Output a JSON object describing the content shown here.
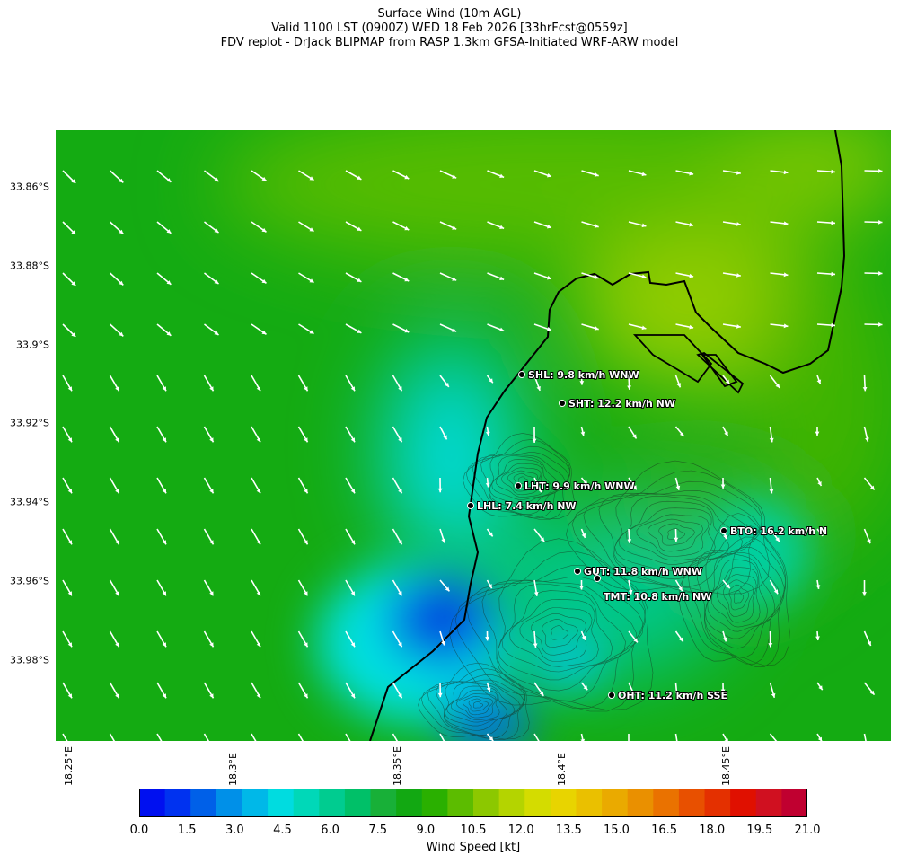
{
  "titles": {
    "line1": "Surface Wind (10m AGL)",
    "line2": "Valid 1100 LST (0900Z) WED 18 Feb 2026 [33hrFcst@0559z]",
    "line3": "FDV replot - DrJack BLIPMAP from RASP 1.3km GFSA-Initiated WRF-ARW model"
  },
  "lat_labels": [
    "33.86°S",
    "33.88°S",
    "33.9°S",
    "33.92°S",
    "33.94°S",
    "33.96°S",
    "33.98°S"
  ],
  "lon_labels": [
    "18.25°E",
    "18.3°E",
    "18.35°E",
    "18.4°E",
    "18.45°E"
  ],
  "stations": [
    {
      "code": "SHL",
      "label": "SHL: 9.8 km/h WNW"
    },
    {
      "code": "SHT",
      "label": "SHT: 12.2 km/h NW"
    },
    {
      "code": "LHT",
      "label": "LHT: 9.9 km/h WNW"
    },
    {
      "code": "LHL",
      "label": "LHL: 7.4 km/h NW"
    },
    {
      "code": "BTO",
      "label": "BTO: 16.2 km/h N"
    },
    {
      "code": "GUT",
      "label": "GUT: 11.8 km/h WNW"
    },
    {
      "code": "TMT",
      "label": "TMT: 10.8 km/h NW"
    },
    {
      "code": "OHT",
      "label": "OHT: 11.2 km/h SSE"
    }
  ],
  "colorbar": {
    "title": "Wind Speed [kt]",
    "ticks": [
      "0.0",
      "1.5",
      "3.0",
      "4.5",
      "6.0",
      "7.5",
      "9.0",
      "10.5",
      "12.0",
      "13.5",
      "15.0",
      "16.5",
      "18.0",
      "19.5",
      "21.0"
    ],
    "colors": [
      "#0010f0",
      "#0032f0",
      "#0060e8",
      "#0090e8",
      "#00b8e8",
      "#00dce0",
      "#00d8b8",
      "#00cc90",
      "#00c068",
      "#18b038",
      "#12a812",
      "#2ab000",
      "#5cbc00",
      "#8cc800",
      "#b4d400",
      "#d4dc00",
      "#e8d400",
      "#eac000",
      "#eaaa00",
      "#ea9000",
      "#ea7200",
      "#e85000",
      "#e43000",
      "#e01000",
      "#d01020",
      "#c00030"
    ]
  }
}
